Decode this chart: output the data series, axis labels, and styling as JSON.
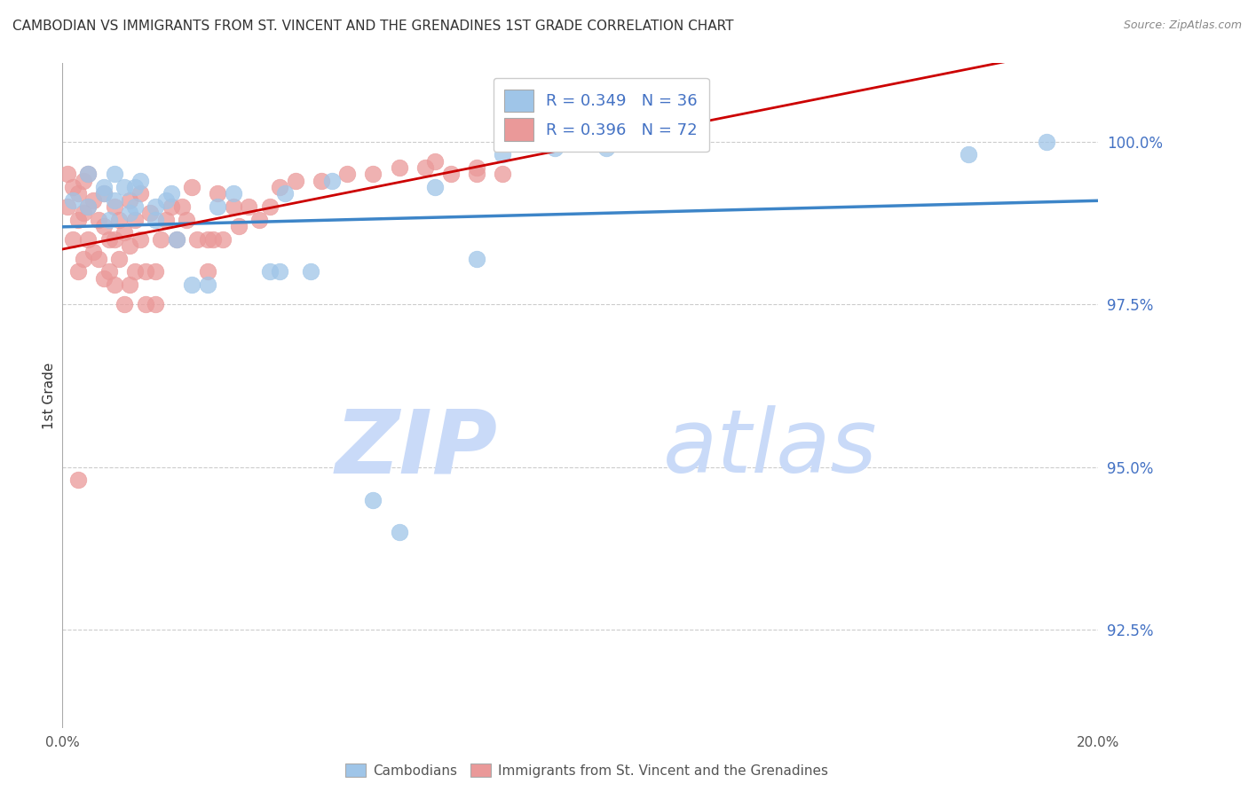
{
  "title": "CAMBODIAN VS IMMIGRANTS FROM ST. VINCENT AND THE GRENADINES 1ST GRADE CORRELATION CHART",
  "source": "Source: ZipAtlas.com",
  "ylabel": "1st Grade",
  "y_ticks": [
    92.5,
    95.0,
    97.5,
    100.0
  ],
  "y_tick_labels": [
    "92.5%",
    "95.0%",
    "97.5%",
    "100.0%"
  ],
  "xlim": [
    0.0,
    0.2
  ],
  "ylim": [
    91.0,
    101.2
  ],
  "legend_R_blue": "0.349",
  "legend_N_blue": "36",
  "legend_R_pink": "0.396",
  "legend_N_pink": "72",
  "blue_color": "#9fc5e8",
  "pink_color": "#ea9999",
  "blue_line_color": "#3d85c8",
  "pink_line_color": "#cc0000",
  "watermark_zip": "ZIP",
  "watermark_atlas": "atlas",
  "watermark_color": "#c9daf8",
  "blue_scatter": {
    "x": [
      0.002,
      0.005,
      0.005,
      0.008,
      0.008,
      0.009,
      0.01,
      0.01,
      0.012,
      0.013,
      0.014,
      0.014,
      0.015,
      0.018,
      0.018,
      0.02,
      0.021,
      0.022,
      0.025,
      0.028,
      0.03,
      0.033,
      0.04,
      0.042,
      0.043,
      0.048,
      0.052,
      0.06,
      0.065,
      0.072,
      0.08,
      0.085,
      0.095,
      0.105,
      0.175,
      0.19
    ],
    "y": [
      99.1,
      99.5,
      99.0,
      99.2,
      99.3,
      98.8,
      99.1,
      99.5,
      99.3,
      98.9,
      99.0,
      99.3,
      99.4,
      99.0,
      98.8,
      99.1,
      99.2,
      98.5,
      97.8,
      97.8,
      99.0,
      99.2,
      98.0,
      98.0,
      99.2,
      98.0,
      99.4,
      94.5,
      94.0,
      99.3,
      98.2,
      99.8,
      99.9,
      99.9,
      99.8,
      100.0
    ]
  },
  "pink_scatter": {
    "x": [
      0.001,
      0.001,
      0.002,
      0.002,
      0.003,
      0.003,
      0.003,
      0.004,
      0.004,
      0.004,
      0.005,
      0.005,
      0.005,
      0.006,
      0.006,
      0.007,
      0.007,
      0.008,
      0.008,
      0.008,
      0.009,
      0.009,
      0.01,
      0.01,
      0.01,
      0.011,
      0.011,
      0.012,
      0.012,
      0.013,
      0.013,
      0.013,
      0.014,
      0.014,
      0.015,
      0.015,
      0.016,
      0.016,
      0.017,
      0.018,
      0.018,
      0.019,
      0.02,
      0.021,
      0.022,
      0.023,
      0.024,
      0.025,
      0.026,
      0.028,
      0.028,
      0.029,
      0.03,
      0.031,
      0.033,
      0.034,
      0.036,
      0.038,
      0.04,
      0.042,
      0.045,
      0.05,
      0.055,
      0.06,
      0.065,
      0.07,
      0.072,
      0.075,
      0.08,
      0.085,
      0.003,
      0.08
    ],
    "y": [
      99.5,
      99.0,
      99.3,
      98.5,
      99.2,
      98.8,
      98.0,
      99.4,
      98.9,
      98.2,
      99.5,
      99.0,
      98.5,
      99.1,
      98.3,
      98.8,
      98.2,
      99.2,
      98.7,
      97.9,
      98.5,
      98.0,
      99.0,
      98.5,
      97.8,
      98.8,
      98.2,
      98.6,
      97.5,
      99.1,
      98.4,
      97.8,
      98.8,
      98.0,
      99.2,
      98.5,
      98.0,
      97.5,
      98.9,
      98.0,
      97.5,
      98.5,
      98.8,
      99.0,
      98.5,
      99.0,
      98.8,
      99.3,
      98.5,
      98.5,
      98.0,
      98.5,
      99.2,
      98.5,
      99.0,
      98.7,
      99.0,
      98.8,
      99.0,
      99.3,
      99.4,
      99.4,
      99.5,
      99.5,
      99.6,
      99.6,
      99.7,
      99.5,
      99.5,
      99.5,
      94.8,
      99.6
    ]
  }
}
